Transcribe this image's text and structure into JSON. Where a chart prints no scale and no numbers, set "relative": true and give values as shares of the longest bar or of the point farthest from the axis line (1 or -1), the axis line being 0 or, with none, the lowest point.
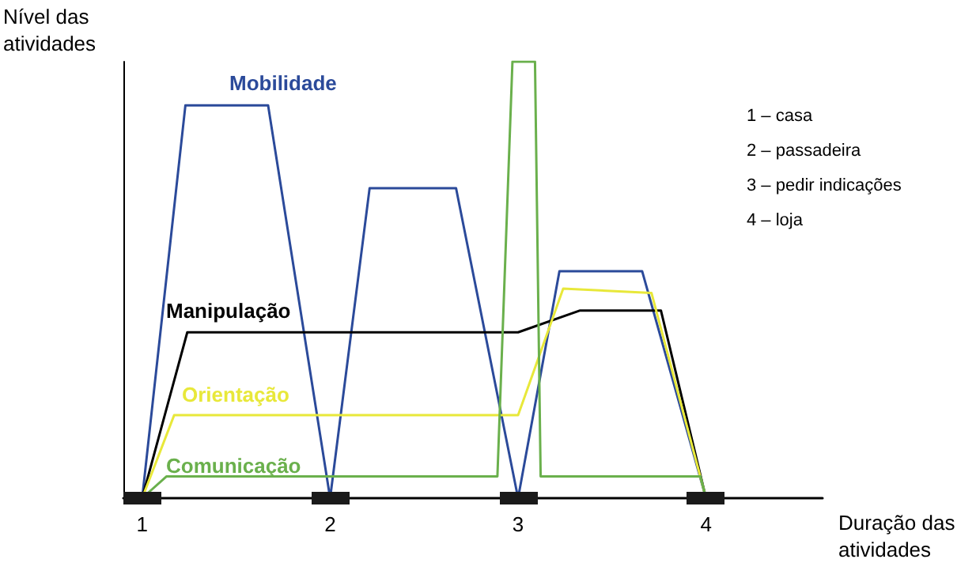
{
  "chart_data": {
    "type": "line",
    "relative": true,
    "xlabel": "Duração das\natividades",
    "ylabel": "Nível das\natividades",
    "xlim": [
      0.9,
      4.62
    ],
    "xticks": [
      1,
      2,
      3,
      4
    ],
    "grid": false,
    "legend": false,
    "marker": "none",
    "line_style": "solid",
    "annotations": [
      "1 – casa",
      "2 – passadeira",
      "3 – pedir indicações",
      "4 – loja"
    ],
    "series": [
      {
        "name": "Mobilidade",
        "color": "#2b4a9a",
        "x": [
          1,
          1.23,
          1.67,
          2,
          2.21,
          2.67,
          3,
          3.22,
          3.66,
          4
        ],
        "values": [
          0,
          0.9,
          0.9,
          0,
          0.71,
          0.71,
          0,
          0.52,
          0.52,
          0
        ]
      },
      {
        "name": "Manipulação",
        "color": "#000000",
        "x": [
          1,
          1.24,
          3,
          3.33,
          3.76,
          4
        ],
        "values": [
          0,
          0.38,
          0.38,
          0.43,
          0.43,
          0
        ]
      },
      {
        "name": "Orientação",
        "color": "#e8e83a",
        "x": [
          1,
          1.17,
          3,
          3.24,
          3.71,
          4
        ],
        "values": [
          0,
          0.19,
          0.19,
          0.48,
          0.47,
          0
        ]
      },
      {
        "name": "Comunicação",
        "color": "#6ab04c",
        "x": [
          1,
          1.13,
          2.89,
          2.97,
          3.09,
          3.12,
          3.97,
          4
        ],
        "values": [
          0,
          0.05,
          0.05,
          1,
          1,
          0.05,
          0.05,
          0
        ]
      }
    ]
  }
}
